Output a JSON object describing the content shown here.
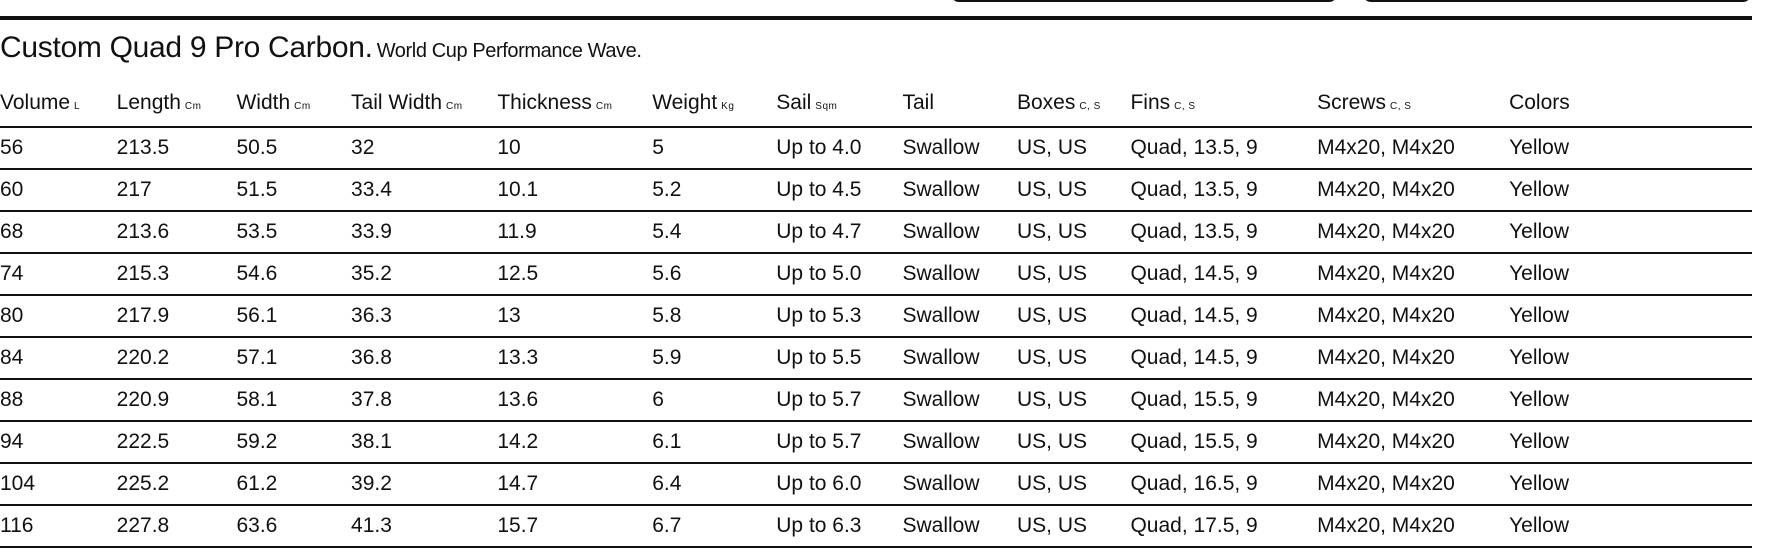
{
  "title": {
    "main": "Custom Quad 9 Pro Carbon.",
    "sub": "World Cup Performance Wave."
  },
  "columns": [
    {
      "label": "Volume",
      "unit": "L"
    },
    {
      "label": "Length",
      "unit": "Cm"
    },
    {
      "label": "Width",
      "unit": "Cm"
    },
    {
      "label": "Tail Width",
      "unit": "Cm"
    },
    {
      "label": "Thickness",
      "unit": "Cm"
    },
    {
      "label": "Weight",
      "unit": "Kg"
    },
    {
      "label": "Sail",
      "unit": "Sqm"
    },
    {
      "label": "Tail",
      "unit": ""
    },
    {
      "label": "Boxes",
      "unit": "C, S"
    },
    {
      "label": "Fins",
      "unit": "C, S"
    },
    {
      "label": "Screws",
      "unit": "C, S"
    },
    {
      "label": "Colors",
      "unit": ""
    }
  ],
  "rows": [
    [
      "56",
      "213.5",
      "50.5",
      "32",
      "10",
      "5",
      "Up to 4.0",
      "Swallow",
      "US, US",
      "Quad, 13.5, 9",
      "M4x20, M4x20",
      "Yellow"
    ],
    [
      "60",
      "217",
      "51.5",
      "33.4",
      "10.1",
      "5.2",
      "Up to 4.5",
      "Swallow",
      "US, US",
      "Quad, 13.5, 9",
      "M4x20, M4x20",
      "Yellow"
    ],
    [
      "68",
      "213.6",
      "53.5",
      "33.9",
      "11.9",
      "5.4",
      "Up to 4.7",
      "Swallow",
      "US, US",
      "Quad, 13.5, 9",
      "M4x20, M4x20",
      "Yellow"
    ],
    [
      "74",
      "215.3",
      "54.6",
      "35.2",
      "12.5",
      "5.6",
      "Up to 5.0",
      "Swallow",
      "US, US",
      "Quad, 14.5, 9",
      "M4x20, M4x20",
      "Yellow"
    ],
    [
      "80",
      "217.9",
      "56.1",
      "36.3",
      "13",
      "5.8",
      "Up to 5.3",
      "Swallow",
      "US, US",
      "Quad, 14.5, 9",
      "M4x20, M4x20",
      "Yellow"
    ],
    [
      "84",
      "220.2",
      "57.1",
      "36.8",
      "13.3",
      "5.9",
      "Up to 5.5",
      "Swallow",
      "US, US",
      "Quad, 14.5, 9",
      "M4x20, M4x20",
      "Yellow"
    ],
    [
      "88",
      "220.9",
      "58.1",
      "37.8",
      "13.6",
      "6",
      "Up to 5.7",
      "Swallow",
      "US, US",
      "Quad, 15.5, 9",
      "M4x20, M4x20",
      "Yellow"
    ],
    [
      "94",
      "222.5",
      "59.2",
      "38.1",
      "14.2",
      "6.1",
      "Up to 5.7",
      "Swallow",
      "US, US",
      "Quad, 15.5, 9",
      "M4x20, M4x20",
      "Yellow"
    ],
    [
      "104",
      "225.2",
      "61.2",
      "39.2",
      "14.7",
      "6.4",
      "Up to 6.0",
      "Swallow",
      "US, US",
      "Quad, 16.5, 9",
      "M4x20, M4x20",
      "Yellow"
    ],
    [
      "116",
      "227.8",
      "63.6",
      "41.3",
      "15.7",
      "6.7",
      "Up to 6.3",
      "Swallow",
      "US, US",
      "Quad, 17.5, 9",
      "M4x20, M4x20",
      "Yellow"
    ]
  ]
}
